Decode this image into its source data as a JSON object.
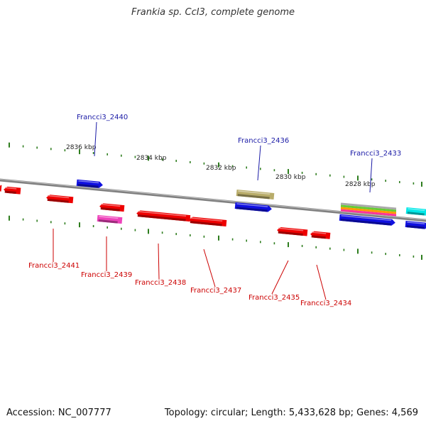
{
  "title": "Frankia sp. CcI3, complete genome",
  "footer": {
    "accession": "Accession: NC_007777",
    "summary": "Topology: circular; Length: 5,433,628 bp; Genes: 4,569"
  },
  "colors": {
    "backbone": "#808080",
    "tick": "#2e7d1e",
    "forward_label": "#1a1aa6",
    "reverse_label": "#cc0000"
  },
  "scale_labels": [
    "2836 kbp",
    "2834 kbp",
    "2832 kbp",
    "2830 kbp",
    "2828 kbp"
  ],
  "genes": [
    {
      "label": "Francci3_2440",
      "strand": "forward",
      "color": "#1010e0"
    },
    {
      "label": "Francci3_2436",
      "strand": "forward",
      "color": "#1010e0"
    },
    {
      "label": "Francci3_2433",
      "strand": "forward",
      "color": "#1010e0"
    },
    {
      "label": "Francci3_2441",
      "strand": "reverse",
      "color": "#ee0000"
    },
    {
      "label": "Francci3_2439",
      "strand": "reverse",
      "color": "#ee0000"
    },
    {
      "label": "Francci3_2438",
      "strand": "reverse",
      "color": "#ee0000"
    },
    {
      "label": "Francci3_2437",
      "strand": "reverse",
      "color": "#ee0000"
    },
    {
      "label": "Francci3_2435",
      "strand": "reverse",
      "color": "#ee0000"
    },
    {
      "label": "Francci3_2434",
      "strand": "reverse",
      "color": "#ee0000"
    }
  ],
  "feature_colors": {
    "unlabeled_forward": "#1010e0",
    "unlabeled_reverse": "#ee0000",
    "rna_feature": "#b8ac6a",
    "misc_feature": "#ee44bb",
    "cyan_feature": "#00e8e8",
    "stack_colors": [
      "#aaaaaa",
      "#66cc33",
      "#ff9900",
      "#ff3399"
    ]
  }
}
